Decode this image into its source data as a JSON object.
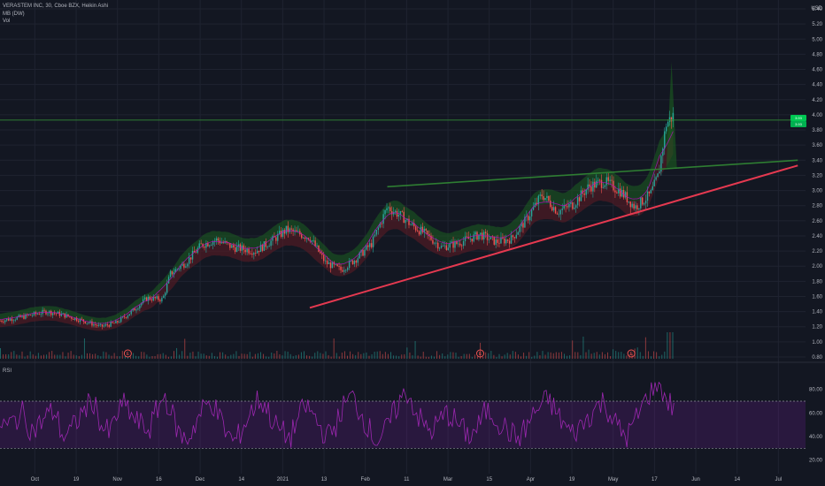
{
  "header": {
    "symbol_line": "VERASTEM INC, 30, Cboe BZX, Heikin Ashi",
    "indicator_1": "MB (DW)",
    "indicator_2": "Vol"
  },
  "rsi_pane": {
    "label": "RSI"
  },
  "colors": {
    "background": "#131722",
    "grid": "#1f2330",
    "text": "#b2b5be",
    "candle_up": "#26a69a",
    "candle_down": "#ef5350",
    "band_green": "#1b5e20",
    "band_red": "#5a1a24",
    "ma_magenta": "#c400c4",
    "trend_support": "#e53950",
    "trend_resistance": "#2e7d32",
    "rsi_line": "#9c27b0",
    "rsi_band": "#7b1fa2"
  },
  "chart_data": [
    {
      "type": "candlestick",
      "title": "VERASTEM INC, 30, Cboe BZX, Heikin Ashi",
      "y_unit": "USD",
      "y_axis_ticks": [
        "0.80",
        "1.00",
        "1.20",
        "1.40",
        "1.60",
        "1.80",
        "2.00",
        "2.20",
        "2.40",
        "2.60",
        "2.80",
        "3.00",
        "3.20",
        "3.40",
        "3.60",
        "3.80",
        "4.00",
        "4.20",
        "4.40",
        "4.60",
        "4.80",
        "5.00",
        "5.20",
        "5.40"
      ],
      "x_axis_ticks": [
        "Oct",
        "19",
        "Nov",
        "16",
        "Dec",
        "14",
        "2021",
        "13",
        "Feb",
        "11",
        "Mar",
        "15",
        "Apr",
        "19",
        "May",
        "17",
        "Jun",
        "14",
        "Jul"
      ],
      "ylim": [
        0.8,
        5.4
      ],
      "price_path": [
        {
          "x": 0,
          "y": 1.28
        },
        {
          "x": 3,
          "y": 1.33
        },
        {
          "x": 6,
          "y": 1.4
        },
        {
          "x": 8,
          "y": 1.36
        },
        {
          "x": 11,
          "y": 1.27
        },
        {
          "x": 13,
          "y": 1.2
        },
        {
          "x": 15,
          "y": 1.25
        },
        {
          "x": 17,
          "y": 1.4
        },
        {
          "x": 19,
          "y": 1.58
        },
        {
          "x": 21,
          "y": 1.56
        },
        {
          "x": 22,
          "y": 1.9
        },
        {
          "x": 24,
          "y": 2.05
        },
        {
          "x": 26,
          "y": 2.28
        },
        {
          "x": 28,
          "y": 2.35
        },
        {
          "x": 30,
          "y": 2.25
        },
        {
          "x": 33,
          "y": 2.2
        },
        {
          "x": 35,
          "y": 2.33
        },
        {
          "x": 37,
          "y": 2.48
        },
        {
          "x": 40,
          "y": 2.38
        },
        {
          "x": 42,
          "y": 2.05
        },
        {
          "x": 44,
          "y": 1.95
        },
        {
          "x": 46,
          "y": 2.1
        },
        {
          "x": 48,
          "y": 2.3
        },
        {
          "x": 50,
          "y": 2.78
        },
        {
          "x": 52,
          "y": 2.65
        },
        {
          "x": 53,
          "y": 2.55
        },
        {
          "x": 55,
          "y": 2.42
        },
        {
          "x": 57,
          "y": 2.25
        },
        {
          "x": 59,
          "y": 2.3
        },
        {
          "x": 62,
          "y": 2.42
        },
        {
          "x": 64,
          "y": 2.32
        },
        {
          "x": 66,
          "y": 2.36
        },
        {
          "x": 68,
          "y": 2.62
        },
        {
          "x": 70,
          "y": 2.95
        },
        {
          "x": 72,
          "y": 2.72
        },
        {
          "x": 74,
          "y": 2.82
        },
        {
          "x": 76,
          "y": 3.05
        },
        {
          "x": 78,
          "y": 3.12
        },
        {
          "x": 80,
          "y": 3.0
        },
        {
          "x": 82,
          "y": 2.78
        },
        {
          "x": 84,
          "y": 2.95
        },
        {
          "x": 85,
          "y": 3.2
        },
        {
          "x": 86,
          "y": 3.88
        },
        {
          "x": 87,
          "y": 4.0
        }
      ],
      "trendlines": [
        {
          "name": "support",
          "from": {
            "x": 40,
            "y": 1.45
          },
          "to": {
            "x": 103,
            "y": 3.33
          }
        },
        {
          "name": "resistance",
          "from": {
            "x": 50,
            "y": 3.05
          },
          "to": {
            "x": 103,
            "y": 3.4
          }
        }
      ],
      "horizontal_line": 3.93,
      "price_labels": [
        "3.93",
        "3.93"
      ],
      "event_markers": [
        {
          "x": 16.5,
          "label": "E"
        },
        {
          "x": 62,
          "label": "E"
        },
        {
          "x": 81.5,
          "label": "E"
        }
      ]
    },
    {
      "type": "line",
      "title": "RSI",
      "y_axis_ticks": [
        "20.00",
        "40.00",
        "60.00",
        "80.00"
      ],
      "ylim": [
        13,
        88
      ],
      "bands": [
        70,
        30
      ],
      "series": [
        {
          "values": [
            52,
            48,
            55,
            60,
            45,
            50,
            58,
            62,
            40,
            44,
            55,
            65,
            70,
            48,
            42,
            60,
            68,
            55,
            50,
            45,
            62,
            75,
            58,
            40,
            38,
            52,
            64,
            70,
            56,
            42,
            35,
            48,
            60,
            72,
            65,
            50,
            44,
            38,
            55,
            66,
            58,
            46,
            40,
            52,
            68,
            74,
            60,
            48,
            36,
            42,
            56,
            70,
            78,
            62,
            50,
            44,
            52,
            60,
            54,
            46,
            40,
            48,
            62,
            58,
            50,
            44,
            38,
            46,
            58,
            66,
            72,
            60,
            50,
            42,
            48,
            56,
            64,
            70,
            58,
            46,
            40,
            52,
            66,
            78,
            88,
            72,
            64
          ]
        }
      ]
    }
  ]
}
